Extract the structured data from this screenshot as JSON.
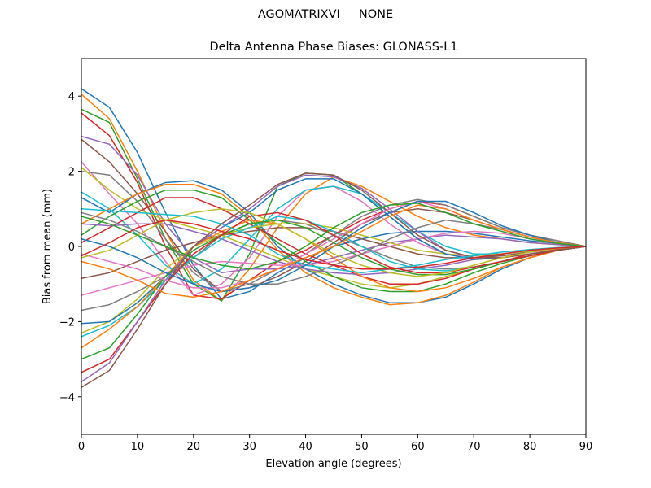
{
  "chart_data": {
    "type": "line",
    "suptitle": "AGOMATRIXVI     NONE",
    "title": "Delta Antenna Phase Biases: GLONASS-L1",
    "xlabel": "Elevation angle (degrees)",
    "ylabel": "Bias from mean (mm)",
    "xlim": [
      0,
      90
    ],
    "ylim": [
      -5,
      5
    ],
    "xticks": [
      0,
      10,
      20,
      30,
      40,
      50,
      60,
      70,
      80,
      90
    ],
    "yticks": [
      -4,
      -2,
      0,
      2,
      4
    ],
    "grid": false,
    "x": [
      0,
      5,
      10,
      15,
      20,
      25,
      30,
      35,
      40,
      45,
      50,
      55,
      60,
      65,
      70,
      75,
      80,
      85,
      90
    ],
    "colors": [
      "#1f77b4",
      "#ff7f0e",
      "#2ca02c",
      "#d62728",
      "#9467bd",
      "#8c564b",
      "#e377c2",
      "#7f7f7f",
      "#bcbd22",
      "#17becf"
    ],
    "series": [
      {
        "values": [
          4.2,
          3.7,
          2.5,
          0.9,
          -0.5,
          -1.4,
          -1.2,
          -0.7,
          -0.3,
          0.0,
          0.2,
          0.35,
          0.4,
          0.4,
          0.35,
          0.25,
          0.15,
          0.08,
          0
        ]
      },
      {
        "values": [
          4.05,
          3.4,
          2.0,
          0.4,
          -0.9,
          -1.45,
          -0.6,
          0.5,
          1.4,
          1.85,
          1.6,
          1.2,
          0.8,
          0.5,
          0.3,
          0.2,
          0.1,
          0.05,
          0
        ]
      },
      {
        "values": [
          3.65,
          3.3,
          1.8,
          0.2,
          -1.0,
          -1.45,
          -0.2,
          1.6,
          1.95,
          1.9,
          1.4,
          0.8,
          0.2,
          -0.2,
          -0.3,
          -0.25,
          -0.15,
          -0.07,
          0
        ]
      },
      {
        "values": [
          3.55,
          2.95,
          1.7,
          0.0,
          -1.3,
          -1.4,
          -0.9,
          -0.4,
          -0.1,
          0.3,
          0.7,
          1.0,
          1.2,
          1.1,
          0.8,
          0.5,
          0.3,
          0.15,
          0
        ]
      },
      {
        "values": [
          2.93,
          2.72,
          1.9,
          0.6,
          -0.3,
          -0.7,
          -0.6,
          -0.6,
          -0.5,
          -0.3,
          -0.1,
          0.1,
          0.2,
          0.3,
          0.25,
          0.2,
          0.1,
          0.05,
          0
        ]
      },
      {
        "values": [
          2.85,
          2.25,
          1.4,
          0.4,
          -0.6,
          -1.2,
          -1.1,
          -0.8,
          -0.4,
          0.1,
          0.6,
          0.9,
          1.0,
          0.9,
          0.7,
          0.45,
          0.25,
          0.1,
          0
        ]
      },
      {
        "values": [
          2.25,
          1.4,
          0.6,
          -0.4,
          -1.3,
          -1.0,
          -0.3,
          0.8,
          1.5,
          1.6,
          1.2,
          0.6,
          0.1,
          -0.2,
          -0.3,
          -0.25,
          -0.15,
          -0.08,
          0
        ]
      },
      {
        "values": [
          2.0,
          1.9,
          1.2,
          0.2,
          -0.7,
          -1.2,
          -1.0,
          -0.6,
          -0.2,
          0.3,
          0.8,
          1.1,
          1.25,
          1.1,
          0.8,
          0.5,
          0.3,
          0.15,
          0
        ]
      },
      {
        "values": [
          2.1,
          1.5,
          1.0,
          0.7,
          0.5,
          0.3,
          0.0,
          -0.3,
          -0.6,
          -0.8,
          -1.0,
          -1.1,
          -1.0,
          -0.8,
          -0.6,
          -0.4,
          -0.25,
          -0.1,
          0
        ]
      },
      {
        "values": [
          1.45,
          1.0,
          0.3,
          -0.5,
          -1.0,
          -0.6,
          0.2,
          1.0,
          1.5,
          1.6,
          1.4,
          0.9,
          0.4,
          0.0,
          -0.2,
          -0.2,
          -0.12,
          -0.05,
          0
        ]
      },
      {
        "values": [
          1.3,
          0.9,
          1.4,
          1.7,
          1.75,
          1.5,
          0.9,
          0.0,
          -0.6,
          -1.0,
          -1.3,
          -1.5,
          -1.5,
          -1.35,
          -1.0,
          -0.6,
          -0.3,
          -0.1,
          0
        ]
      },
      {
        "values": [
          0.6,
          1.0,
          1.4,
          1.65,
          1.65,
          1.4,
          0.8,
          -0.1,
          -0.7,
          -1.1,
          -1.35,
          -1.55,
          -1.5,
          -1.3,
          -0.95,
          -0.55,
          -0.3,
          -0.1,
          0
        ]
      },
      {
        "values": [
          0.3,
          0.8,
          1.2,
          1.5,
          1.5,
          1.3,
          0.7,
          0.1,
          -0.4,
          -0.8,
          -1.1,
          -1.2,
          -1.2,
          -1.0,
          -0.7,
          -0.45,
          -0.25,
          -0.1,
          0
        ]
      },
      {
        "values": [
          0.1,
          0.5,
          0.9,
          1.3,
          1.3,
          1.0,
          0.6,
          0.2,
          -0.2,
          -0.5,
          -0.8,
          -1.0,
          -1.0,
          -0.85,
          -0.6,
          -0.4,
          -0.2,
          -0.08,
          0
        ]
      },
      {
        "values": [
          0.6,
          0.55,
          0.6,
          0.6,
          0.4,
          0.2,
          -0.1,
          -0.4,
          -0.6,
          -0.7,
          -0.75,
          -0.7,
          -0.6,
          -0.5,
          -0.35,
          -0.2,
          -0.1,
          -0.05,
          0
        ]
      },
      {
        "values": [
          -0.85,
          -0.7,
          -0.4,
          -0.1,
          0.1,
          0.3,
          0.4,
          0.5,
          0.5,
          0.4,
          0.2,
          0.0,
          -0.2,
          -0.3,
          -0.3,
          -0.25,
          -0.15,
          -0.05,
          0
        ]
      },
      {
        "values": [
          -1.3,
          -1.1,
          -0.9,
          -0.7,
          -0.5,
          -0.4,
          -0.45,
          -0.5,
          -0.5,
          -0.4,
          -0.2,
          0.0,
          0.2,
          0.35,
          0.4,
          0.35,
          0.2,
          0.1,
          0
        ]
      },
      {
        "values": [
          -1.7,
          -1.55,
          -1.2,
          -0.8,
          -0.3,
          0.3,
          0.6,
          0.7,
          0.6,
          0.3,
          0.0,
          -0.3,
          -0.55,
          -0.6,
          -0.55,
          -0.4,
          -0.25,
          -0.1,
          0
        ]
      },
      {
        "values": [
          -2.3,
          -2.0,
          -1.4,
          -0.6,
          0.0,
          0.3,
          0.5,
          0.6,
          0.6,
          0.5,
          0.3,
          0.1,
          -0.1,
          -0.2,
          -0.25,
          -0.2,
          -0.12,
          -0.05,
          0
        ]
      },
      {
        "values": [
          -2.4,
          -2.1,
          -1.6,
          -0.9,
          -0.3,
          0.2,
          0.5,
          0.8,
          0.7,
          0.4,
          0.0,
          -0.4,
          -0.6,
          -0.65,
          -0.55,
          -0.4,
          -0.25,
          -0.1,
          0
        ]
      },
      {
        "values": [
          -2.05,
          -2.0,
          -1.5,
          -0.8,
          0.0,
          0.5,
          0.9,
          1.5,
          1.8,
          1.8,
          1.4,
          0.8,
          0.2,
          -0.2,
          -0.35,
          -0.3,
          -0.2,
          -0.1,
          0
        ]
      },
      {
        "values": [
          -2.7,
          -2.2,
          -1.6,
          -0.8,
          0.0,
          0.4,
          0.7,
          0.6,
          0.2,
          -0.3,
          -0.8,
          -1.1,
          -1.2,
          -1.1,
          -0.85,
          -0.55,
          -0.3,
          -0.1,
          0
        ]
      },
      {
        "values": [
          -3.0,
          -2.7,
          -1.8,
          -0.8,
          -0.1,
          0.3,
          0.6,
          0.7,
          0.5,
          0.1,
          -0.3,
          -0.6,
          -0.75,
          -0.75,
          -0.6,
          -0.4,
          -0.25,
          -0.1,
          0
        ]
      },
      {
        "values": [
          -3.35,
          -3.0,
          -2.0,
          -1.0,
          -0.2,
          0.3,
          0.8,
          0.9,
          0.7,
          0.3,
          -0.2,
          -0.55,
          -0.7,
          -0.7,
          -0.55,
          -0.4,
          -0.25,
          -0.1,
          0
        ]
      },
      {
        "values": [
          -3.6,
          -3.1,
          -2.0,
          -0.9,
          0.0,
          0.5,
          1.0,
          1.6,
          1.9,
          1.85,
          1.55,
          1.0,
          0.4,
          -0.1,
          -0.3,
          -0.3,
          -0.2,
          -0.1,
          0
        ]
      },
      {
        "values": [
          -3.75,
          -3.3,
          -2.2,
          -1.0,
          0.0,
          0.6,
          1.1,
          1.65,
          1.95,
          1.9,
          1.5,
          0.9,
          0.3,
          -0.1,
          -0.3,
          -0.3,
          -0.2,
          -0.1,
          0
        ]
      },
      {
        "values": [
          -0.2,
          -0.4,
          -0.6,
          -0.9,
          -1.1,
          -1.1,
          -0.9,
          -0.6,
          -0.2,
          0.2,
          0.6,
          1.0,
          1.2,
          1.0,
          0.7,
          0.45,
          0.25,
          0.1,
          0
        ]
      },
      {
        "values": [
          0.9,
          0.7,
          0.4,
          0.0,
          -0.4,
          -0.8,
          -1.0,
          -1.0,
          -0.8,
          -0.5,
          -0.2,
          0.2,
          0.5,
          0.7,
          0.6,
          0.45,
          0.25,
          0.1,
          0
        ]
      },
      {
        "values": [
          -0.3,
          -0.1,
          0.3,
          0.7,
          0.9,
          1.0,
          0.9,
          0.6,
          0.2,
          -0.2,
          -0.5,
          -0.7,
          -0.8,
          -0.7,
          -0.5,
          -0.3,
          -0.15,
          -0.05,
          0
        ]
      },
      {
        "values": [
          1.0,
          0.95,
          0.9,
          0.85,
          0.8,
          0.6,
          0.3,
          -0.2,
          -0.5,
          -0.6,
          -0.7,
          -0.6,
          -0.5,
          -0.35,
          -0.25,
          -0.15,
          -0.08,
          -0.03,
          0
        ]
      },
      {
        "values": [
          0.2,
          0.0,
          -0.3,
          -0.7,
          -1.0,
          -1.2,
          -1.1,
          -0.9,
          -0.5,
          0.0,
          0.5,
          0.9,
          1.2,
          1.2,
          0.9,
          0.55,
          0.3,
          0.1,
          0
        ]
      },
      {
        "values": [
          -0.4,
          -0.6,
          -0.9,
          -1.25,
          -1.35,
          -1.2,
          -0.9,
          -0.6,
          -0.3,
          0.0,
          0.4,
          0.8,
          1.1,
          1.0,
          0.7,
          0.45,
          0.25,
          0.1,
          0
        ]
      },
      {
        "values": [
          0.8,
          0.6,
          0.3,
          0.0,
          -0.3,
          -0.5,
          -0.6,
          -0.4,
          0.0,
          0.5,
          0.9,
          1.1,
          1.15,
          0.9,
          0.6,
          0.4,
          0.2,
          0.08,
          0
        ]
      },
      {
        "values": [
          -0.25,
          0.1,
          0.5,
          0.7,
          0.6,
          0.4,
          0.2,
          -0.1,
          -0.35,
          -0.5,
          -0.6,
          -0.6,
          -0.55,
          -0.45,
          -0.3,
          -0.2,
          -0.1,
          -0.04,
          0
        ]
      }
    ]
  }
}
